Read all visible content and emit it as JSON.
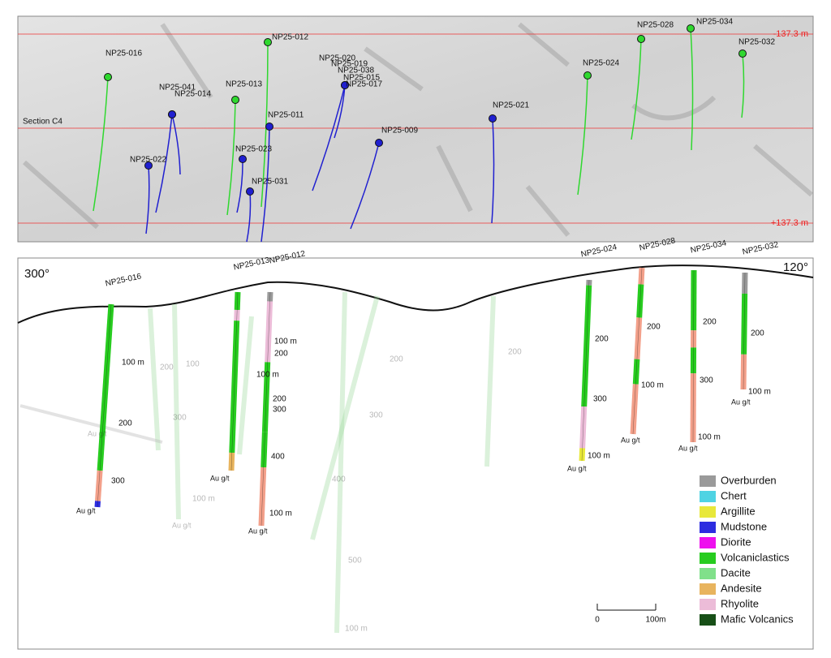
{
  "plan": {
    "section_label": "Section C4",
    "offset_top": "-137.3 m",
    "offset_bottom": "+137.3 m",
    "holes": [
      "NP25-016",
      "NP25-041",
      "NP25-014",
      "NP25-013",
      "NP25-012",
      "NP25-011",
      "NP25-022",
      "NP25-023",
      "NP25-031",
      "NP25-020",
      "NP25-019",
      "NP25-038",
      "NP25-015",
      "NP25-017",
      "NP25-009",
      "NP25-021",
      "NP25-024",
      "NP25-028",
      "NP25-034",
      "NP25-032"
    ]
  },
  "section": {
    "azimuth_left": "300°",
    "azimuth_right": "120°",
    "holes": [
      "NP25-016",
      "NP25-013",
      "NP25-012",
      "NP25-024",
      "NP25-028",
      "NP25-034",
      "NP25-032"
    ],
    "depth_labels": [
      "100 m",
      "200",
      "300",
      "100 m",
      "100 m",
      "200",
      "200",
      "300",
      "400",
      "100 m",
      "200",
      "300",
      "100 m",
      "200",
      "100 m",
      "200",
      "300",
      "100 m",
      "200",
      "100 m",
      "100",
      "200",
      "300",
      "100 m",
      "200",
      "300",
      "400",
      "500",
      "100 m",
      "200"
    ],
    "assay_label": "Au g/t"
  },
  "legend": [
    {
      "name": "Overburden",
      "color": "#9a9a9a"
    },
    {
      "name": "Chert",
      "color": "#4fd3e3"
    },
    {
      "name": "Argillite",
      "color": "#e8e83a"
    },
    {
      "name": "Mudstone",
      "color": "#2d2de0"
    },
    {
      "name": "Diorite",
      "color": "#ee10ee"
    },
    {
      "name": "Volcaniclastics",
      "color": "#27cc1f"
    },
    {
      "name": "Dacite",
      "color": "#80e08a"
    },
    {
      "name": "Andesite",
      "color": "#e8b45e"
    },
    {
      "name": "Rhyolite",
      "color": "#ecbcd8"
    },
    {
      "name": "Mafic Volcanics",
      "color": "#174f17"
    }
  ],
  "scale": {
    "start": "0",
    "end": "100m"
  }
}
